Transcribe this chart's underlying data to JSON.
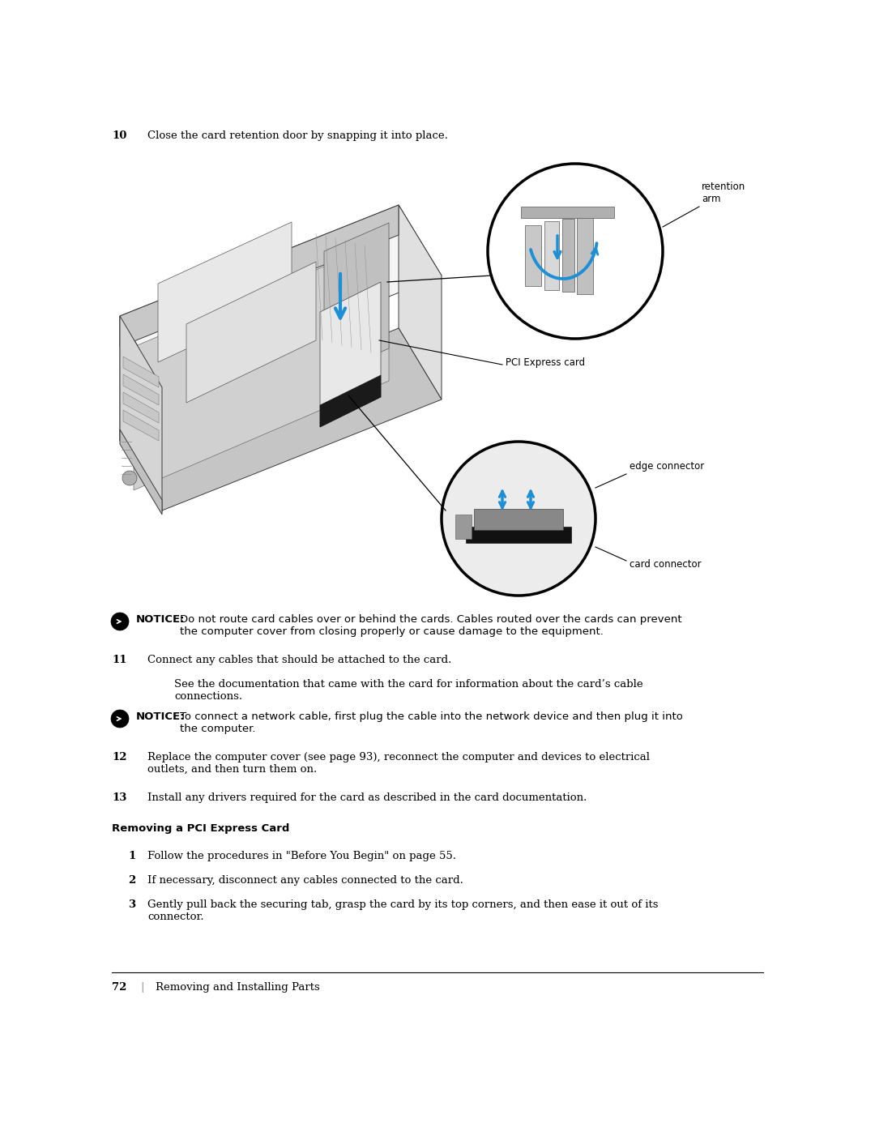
{
  "page_width": 10.8,
  "page_height": 13.97,
  "dpi": 100,
  "bg": "#ffffff",
  "text_color": "#000000",
  "blue": "#1c8fd6",
  "gray_line": "#444444",
  "step10_num": "10",
  "step10_text": "Close the card retention door by snapping it into place.",
  "label_retention": "retention\narm",
  "label_pci": "PCI Express card",
  "label_edge": "edge connector",
  "label_card_conn": "card connector",
  "notice1_bold": "NOTICE:",
  "notice1_rest": "Do not route card cables over or behind the cards. Cables routed over the cards can prevent\nthe computer cover from closing properly or cause damage to the equipment.",
  "step11_num": "11",
  "step11_main": "Connect any cables that should be attached to the card.",
  "step11_sub": "See the documentation that came with the card for information about the card’s cable\nconnections.",
  "notice2_bold": "NOTICE:",
  "notice2_rest": "To connect a network cable, first plug the cable into the network device and then plug it into\nthe computer.",
  "step12_num": "12",
  "step12_text": "Replace the computer cover (see page 93), reconnect the computer and devices to electrical\noutlets, and then turn them on.",
  "step13_num": "13",
  "step13_text": "Install any drivers required for the card as described in the card documentation.",
  "section_title": "Removing a PCI Express Card",
  "sub1_num": "1",
  "sub1_text": "Follow the procedures in \"Before You Begin\" on page 55.",
  "sub2_num": "2",
  "sub2_text": "If necessary, disconnect any cables connected to the card.",
  "sub3_num": "3",
  "sub3_text": "Gently pull back the securing tab, grasp the card by its top corners, and then ease it out of its\nconnector.",
  "footer_num": "72",
  "footer_text": "Removing and Installing Parts"
}
